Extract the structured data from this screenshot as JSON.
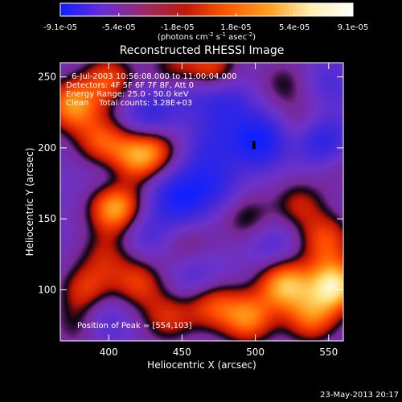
{
  "colorbar": {
    "tick_labels": [
      "-9.1e-05",
      "-5.4e-05",
      "-1.8e-05",
      "1.8e-05",
      "5.4e-05",
      "9.1e-05"
    ],
    "units_label": "(photons cm",
    "units_exp1": "-2",
    "units_mid": " s",
    "units_exp2": "-1",
    "units_tail": " asec",
    "units_exp3": "-2",
    "units_close": ")",
    "range": [
      -9.1e-05,
      9.1e-05
    ],
    "colors": [
      "#1020ff",
      "#6a2cd8",
      "#9a2a6a",
      "#c01a0a",
      "#ff5a00",
      "#ffa020",
      "#fff0b0",
      "#ffffff"
    ]
  },
  "chart_data": {
    "type": "heatmap",
    "title": "Reconstructed RHESSI Image",
    "xlabel": "Heliocentric X (arcsec)",
    "ylabel": "Heliocentric Y (arcsec)",
    "xlim": [
      367,
      560
    ],
    "ylim": [
      64,
      260
    ],
    "x_ticks": [
      400,
      450,
      500,
      550
    ],
    "y_ticks": [
      100,
      150,
      200,
      250
    ],
    "annotations": [
      "6-Jul-2003 10:56:08.000 to 11:00:04.000",
      "Detectors: 4F 5F 6F 7F 8F, Att 0",
      "Energy Range: 25.0 - 50.0 keV",
      "Clean    Total counts: 3.28E+03"
    ],
    "peak_label": "Position of Peak = [554,103]",
    "peak": [
      554,
      103
    ],
    "marker": [
      499,
      202
    ],
    "blobs": [
      {
        "x": 554,
        "y": 103,
        "v": 1.0
      },
      {
        "x": 520,
        "y": 104,
        "v": 0.85
      },
      {
        "x": 548,
        "y": 135,
        "v": 0.55
      },
      {
        "x": 538,
        "y": 80,
        "v": 0.6
      },
      {
        "x": 405,
        "y": 158,
        "v": 0.9
      },
      {
        "x": 415,
        "y": 190,
        "v": 0.6
      },
      {
        "x": 395,
        "y": 205,
        "v": 0.55
      },
      {
        "x": 375,
        "y": 230,
        "v": 0.75
      },
      {
        "x": 400,
        "y": 248,
        "v": 0.55
      },
      {
        "x": 430,
        "y": 200,
        "v": 0.6
      },
      {
        "x": 470,
        "y": 256,
        "v": 0.55
      },
      {
        "x": 445,
        "y": 255,
        "v": 0.4
      },
      {
        "x": 535,
        "y": 215,
        "v": 0.35
      },
      {
        "x": 530,
        "y": 160,
        "v": 0.4
      },
      {
        "x": 495,
        "y": 150,
        "v": 0.35
      },
      {
        "x": 495,
        "y": 80,
        "v": 0.7
      },
      {
        "x": 470,
        "y": 90,
        "v": 0.55
      },
      {
        "x": 440,
        "y": 80,
        "v": 0.45
      },
      {
        "x": 420,
        "y": 105,
        "v": 0.5
      },
      {
        "x": 385,
        "y": 100,
        "v": 0.5
      },
      {
        "x": 380,
        "y": 75,
        "v": 0.35
      },
      {
        "x": 398,
        "y": 125,
        "v": 0.35
      },
      {
        "x": 455,
        "y": 130,
        "v": 0.3
      },
      {
        "x": 520,
        "y": 245,
        "v": 0.3
      },
      {
        "x": 555,
        "y": 190,
        "v": 0.25
      },
      {
        "x": 502,
        "y": 205,
        "v": -0.8
      },
      {
        "x": 545,
        "y": 205,
        "v": -0.75
      },
      {
        "x": 448,
        "y": 165,
        "v": -0.7
      },
      {
        "x": 470,
        "y": 175,
        "v": -0.45
      },
      {
        "x": 480,
        "y": 230,
        "v": -0.45
      },
      {
        "x": 428,
        "y": 222,
        "v": -0.5
      },
      {
        "x": 405,
        "y": 180,
        "v": -0.3
      },
      {
        "x": 460,
        "y": 110,
        "v": -0.35
      },
      {
        "x": 395,
        "y": 80,
        "v": -0.35
      },
      {
        "x": 470,
        "y": 200,
        "v": -0.35
      },
      {
        "x": 512,
        "y": 132,
        "v": -0.3
      },
      {
        "x": 455,
        "y": 240,
        "v": -0.3
      },
      {
        "x": 550,
        "y": 245,
        "v": -0.25
      },
      {
        "x": 425,
        "y": 140,
        "v": -0.3
      }
    ]
  },
  "footer": {
    "timestamp": "23-May-2013 20:17"
  }
}
